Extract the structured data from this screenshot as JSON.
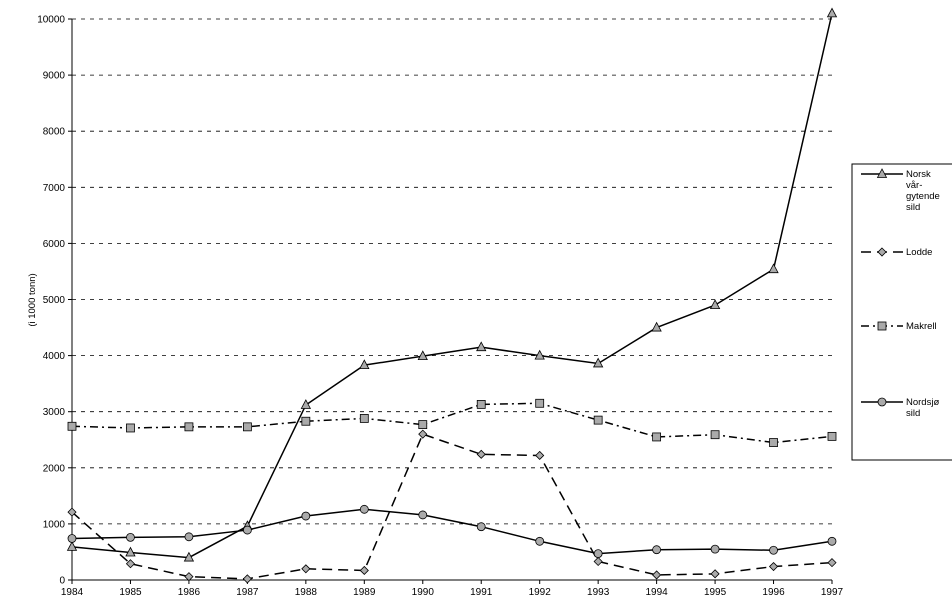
{
  "chart_data": {
    "type": "line",
    "title": "",
    "xlabel": "",
    "ylabel": "(i 1000 tonn)",
    "x": [
      "1984",
      "1985",
      "1986",
      "1987",
      "1988",
      "1989",
      "1990",
      "1991",
      "1992",
      "1993",
      "1994",
      "1995",
      "1996",
      "1997"
    ],
    "ylim": [
      0,
      10000
    ],
    "yticks": [
      "0",
      "1000",
      "2000",
      "3000",
      "4000",
      "5000",
      "6000",
      "7000",
      "8000",
      "9000",
      "10000"
    ],
    "grid": true,
    "legend_position": "right",
    "series": [
      {
        "name": "Norsk vår-gytende sild",
        "legend_lines": [
          "Norsk",
          "vår-",
          "gytende",
          "sild"
        ],
        "marker": "triangle",
        "line_style": "solid",
        "values": [
          590,
          490,
          400,
          960,
          3120,
          3830,
          3990,
          4150,
          4000,
          3860,
          4500,
          4900,
          5540,
          10100
        ]
      },
      {
        "name": "Lodde",
        "legend_lines": [
          "Lodde"
        ],
        "marker": "diamond",
        "line_style": "dashed",
        "values": [
          1210,
          290,
          60,
          20,
          200,
          170,
          2600,
          2240,
          2220,
          330,
          90,
          110,
          240,
          310
        ]
      },
      {
        "name": "Makrell",
        "legend_lines": [
          "Makrell"
        ],
        "marker": "square",
        "line_style": "dashdot",
        "values": [
          2740,
          2710,
          2730,
          2730,
          2830,
          2880,
          2770,
          3130,
          3150,
          2850,
          2550,
          2590,
          2450,
          2560
        ]
      },
      {
        "name": "Nordsjø sild",
        "legend_lines": [
          "Nordsjø",
          "sild"
        ],
        "marker": "circle",
        "line_style": "solid",
        "values": [
          740,
          760,
          770,
          890,
          1140,
          1260,
          1160,
          950,
          690,
          470,
          540,
          550,
          530,
          690
        ]
      }
    ]
  }
}
